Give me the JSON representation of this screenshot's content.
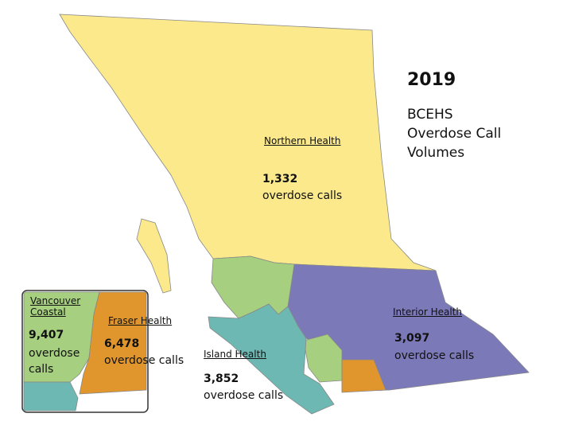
{
  "title": "2019",
  "subtitle": "BCEHS Overdose Call Volumes",
  "regions": [
    {
      "name": "Northern Health",
      "calls": "1,332",
      "unit": "overdose calls"
    },
    {
      "name": "Interior Health",
      "calls": "3,097",
      "unit": "overdose calls"
    },
    {
      "name": "Island Health",
      "calls": "3,852",
      "unit": "overdose calls"
    },
    {
      "name": "Vancouver Coastal",
      "calls": "9,407",
      "unit": "overdose calls"
    },
    {
      "name": "Fraser Health",
      "calls": "6,478",
      "unit": "overdose calls"
    }
  ]
}
